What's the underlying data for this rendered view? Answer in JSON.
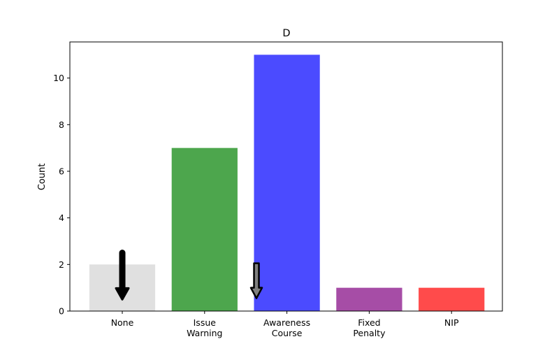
{
  "chart_data": {
    "type": "bar",
    "title": "D",
    "xlabel": "",
    "ylabel": "Count",
    "categories": [
      "None",
      "Issue\nWarning",
      "Awareness\nCourse",
      "Fixed\nPenalty",
      "NIP"
    ],
    "values": [
      2,
      7,
      11,
      1,
      1
    ],
    "colors": [
      "#e0e0e0",
      "#4da64d",
      "#4b4bff",
      "#a64da6",
      "#ff4b4b"
    ],
    "ylim": [
      0,
      11.55
    ],
    "yticks": [
      0,
      2,
      4,
      6,
      8,
      10
    ],
    "grid": false,
    "annotations": [
      {
        "type": "arrow",
        "style": "solid-black",
        "x": 0,
        "y_from": 2.5,
        "y_to": 0.5
      },
      {
        "type": "arrow",
        "style": "hollow-gray",
        "x": 1.63,
        "y_from": 2.05,
        "y_to": 0.55
      }
    ]
  }
}
